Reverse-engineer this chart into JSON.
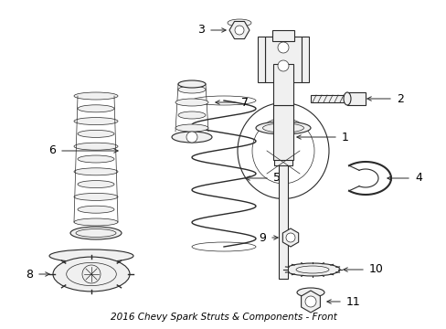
{
  "title": "2016 Chevy Spark Struts & Components - Front",
  "background_color": "#ffffff",
  "line_color": "#2a2a2a",
  "text_color": "#000000",
  "label_fontsize": 9,
  "title_fontsize": 7.5,
  "components": {
    "strut_assembly": {
      "label": "1"
    },
    "bolt_lower": {
      "label": "2"
    },
    "nut_bottom": {
      "label": "3"
    },
    "spring_upper_seat": {
      "label": "4"
    },
    "coil_spring": {
      "label": "5"
    },
    "dust_boot": {
      "label": "6"
    },
    "bump_stop": {
      "label": "7"
    },
    "strut_mount": {
      "label": "8"
    },
    "nut_top": {
      "label": "9"
    },
    "bearing": {
      "label": "10"
    },
    "nut_small": {
      "label": "11"
    }
  }
}
